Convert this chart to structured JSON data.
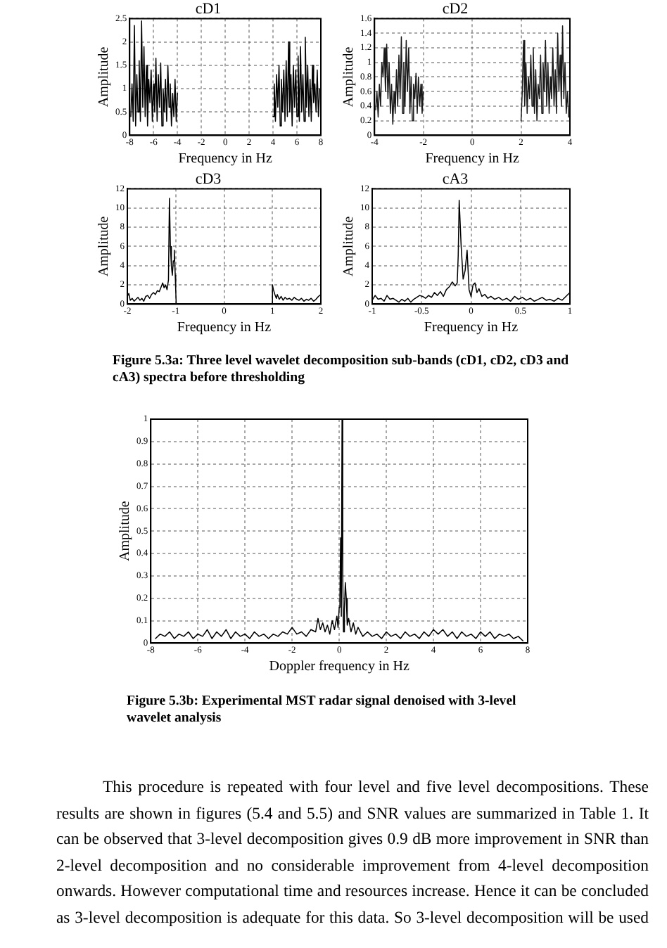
{
  "chart_data": [
    {
      "type": "line",
      "title": "cD1",
      "xlabel": "Frequency in Hz",
      "ylabel": "Amplitude",
      "color": "#000000",
      "marker": "none",
      "grid": true,
      "xlim": [
        -8,
        8
      ],
      "xticks": [
        -8,
        -6,
        -4,
        -2,
        0,
        2,
        4,
        6,
        8
      ],
      "ylim": [
        0,
        2.5
      ],
      "yticks": [
        0,
        0.5,
        1,
        1.5,
        2,
        2.5
      ],
      "x": [
        -7.9,
        -7.8,
        -7.7,
        -7.6,
        -7.5,
        -7.4,
        -7.3,
        -7.2,
        -7.1,
        -7,
        -6.9,
        -6.8,
        -6.7,
        -6.6,
        -6.5,
        -6.4,
        -6.3,
        -6.2,
        -6.1,
        -6,
        -5.9,
        -5.8,
        -5.7,
        -5.6,
        -5.5,
        -5.4,
        -5.3,
        -5.2,
        -5.1,
        -5,
        -4.9,
        -4.8,
        -4.7,
        -4.6,
        -4.5,
        -4.4,
        -4.3,
        -4.2,
        -4.1,
        -4,
        0,
        4,
        4.1,
        4.2,
        4.3,
        4.4,
        4.5,
        4.6,
        4.7,
        4.8,
        4.9,
        5,
        5.1,
        5.2,
        5.3,
        5.4,
        5.5,
        5.6,
        5.7,
        5.8,
        5.9,
        6,
        6.1,
        6.2,
        6.3,
        6.4,
        6.5,
        6.6,
        6.7,
        6.8,
        6.9,
        7,
        7.1,
        7.2,
        7.3,
        7.4,
        7.5,
        7.6,
        7.7,
        7.8,
        7.9
      ],
      "values": [
        0.4,
        1.1,
        0.3,
        2.35,
        0.2,
        1.3,
        0.5,
        1.6,
        0.3,
        2.45,
        0.6,
        1.9,
        0.4,
        1.5,
        0.2,
        1.2,
        0.7,
        1.4,
        0.3,
        1.1,
        0.5,
        1.65,
        0.3,
        1.3,
        0.6,
        1.55,
        0.2,
        1,
        0.5,
        1.2,
        0.3,
        1.5,
        0.6,
        1.1,
        0.2,
        0.9,
        0.4,
        1.2,
        0.3,
        0.9,
        null,
        0.4,
        1.1,
        0.3,
        1.3,
        0.6,
        1.5,
        0.2,
        1.2,
        0.5,
        1.4,
        0.3,
        1.6,
        0.4,
        2,
        0.5,
        1.3,
        0.2,
        1.5,
        0.6,
        1.4,
        0.4,
        1.7,
        0.3,
        1.9,
        0.5,
        1.3,
        0.3,
        2.1,
        0.6,
        1.5,
        0.4,
        1.2,
        0.3,
        1.5,
        0.7,
        1.1,
        0.5,
        1.4,
        0.4,
        1
      ]
    },
    {
      "type": "line",
      "title": "cD2",
      "xlabel": "Frequency in Hz",
      "ylabel": "Amplitude",
      "color": "#1a1a1a",
      "marker": "none",
      "grid": true,
      "xlim": [
        -4,
        4
      ],
      "xticks": [
        -4,
        -2,
        0,
        2,
        4
      ],
      "ylim": [
        0,
        1.6
      ],
      "yticks": [
        0,
        0.2,
        0.4,
        0.6,
        0.8,
        1,
        1.2,
        1.4,
        1.6
      ],
      "x": [
        -3.95,
        -3.9,
        -3.85,
        -3.8,
        -3.75,
        -3.7,
        -3.65,
        -3.6,
        -3.55,
        -3.5,
        -3.45,
        -3.4,
        -3.35,
        -3.3,
        -3.25,
        -3.2,
        -3.15,
        -3.1,
        -3.05,
        -3,
        -2.95,
        -2.9,
        -2.85,
        -2.8,
        -2.75,
        -2.7,
        -2.65,
        -2.6,
        -2.55,
        -2.5,
        -2.45,
        -2.4,
        -2.35,
        -2.3,
        -2.25,
        -2.2,
        -2.15,
        -2.1,
        -2.05,
        -2,
        0,
        2,
        2.05,
        2.1,
        2.15,
        2.2,
        2.25,
        2.3,
        2.35,
        2.4,
        2.45,
        2.5,
        2.55,
        2.6,
        2.65,
        2.7,
        2.75,
        2.8,
        2.85,
        2.9,
        2.95,
        3,
        3.05,
        3.1,
        3.15,
        3.2,
        3.25,
        3.3,
        3.35,
        3.4,
        3.45,
        3.5,
        3.55,
        3.6,
        3.65,
        3.7,
        3.75,
        3.8,
        3.85,
        3.9,
        3.95
      ],
      "values": [
        0.35,
        0.6,
        0.25,
        0.7,
        0.4,
        1,
        0.8,
        1.2,
        0.6,
        1.25,
        0.5,
        1,
        0.3,
        0.7,
        0.15,
        0.6,
        0.3,
        0.9,
        0.4,
        1.1,
        0.5,
        1.35,
        0.3,
        1,
        0.4,
        1.3,
        0.6,
        1.2,
        0.3,
        0.8,
        0.2,
        0.7,
        0.5,
        0.85,
        0.3,
        0.8,
        0.4,
        0.7,
        0.3,
        0.6,
        null,
        0.2,
        0.6,
        1.3,
        0.4,
        1,
        0.3,
        0.8,
        0.5,
        1.1,
        0.4,
        1.2,
        0.3,
        0.9,
        0.2,
        0.7,
        0.5,
        1.1,
        0.3,
        1,
        0.6,
        1.3,
        0.4,
        1,
        0.3,
        0.8,
        0.5,
        1.2,
        0.4,
        0.9,
        0.3,
        1.4,
        0.6,
        1.1,
        0.4,
        1.5,
        0.5,
        1,
        0.3,
        0.6,
        0.25
      ]
    },
    {
      "type": "line",
      "title": "cD3",
      "xlabel": "Frequency in Hz",
      "ylabel": "Amplitude",
      "color": "#000000",
      "marker": "none",
      "grid": true,
      "xlim": [
        -2,
        2
      ],
      "xticks": [
        -2,
        -1,
        0,
        1,
        2
      ],
      "ylim": [
        0,
        12
      ],
      "yticks": [
        0,
        2,
        4,
        6,
        8,
        10,
        12
      ],
      "x": [
        -2,
        -1.97,
        -1.94,
        -1.9,
        -1.86,
        -1.82,
        -1.78,
        -1.74,
        -1.7,
        -1.66,
        -1.62,
        -1.58,
        -1.54,
        -1.5,
        -1.46,
        -1.42,
        -1.38,
        -1.34,
        -1.3,
        -1.27,
        -1.24,
        -1.21,
        -1.18,
        -1.15,
        -1.13,
        -1.11,
        -1.09,
        -1.07,
        -1.05,
        -1.03,
        -1.01,
        -1,
        -0.99,
        0,
        0.99,
        1,
        1.02,
        1.05,
        1.08,
        1.1,
        1.14,
        1.18,
        1.22,
        1.26,
        1.3,
        1.35,
        1.4,
        1.45,
        1.5,
        1.55,
        1.6,
        1.65,
        1.7,
        1.75,
        1.8,
        1.85,
        1.9,
        1.95,
        2
      ],
      "values": [
        0.8,
        1.1,
        0.4,
        0.6,
        0.3,
        0.5,
        0.7,
        0.4,
        0.6,
        0.3,
        0.8,
        0.9,
        0.6,
        1,
        1.2,
        1,
        1.4,
        1.3,
        1.8,
        2.2,
        1.7,
        2,
        1.5,
        2.5,
        11,
        6,
        4,
        3,
        4.5,
        5.6,
        3,
        1.5,
        0,
        null,
        0,
        2,
        1.5,
        1,
        0.6,
        1,
        0.5,
        0.8,
        0.4,
        0.7,
        0.5,
        0.6,
        0.4,
        0.7,
        0.5,
        0.4,
        0.6,
        0.3,
        0.5,
        0.4,
        0.6,
        0.3,
        0.5,
        0.8,
        1
      ]
    },
    {
      "type": "line",
      "title": "cA3",
      "xlabel": "Frequency in Hz",
      "ylabel": "Amplitude",
      "color": "#000000",
      "marker": "none",
      "grid": true,
      "xlim": [
        -1,
        1
      ],
      "xticks": [
        -1,
        -0.5,
        0,
        0.5,
        1
      ],
      "ylim": [
        0,
        12
      ],
      "yticks": [
        0,
        2,
        4,
        6,
        8,
        10,
        12
      ],
      "x": [
        -1,
        -0.97,
        -0.94,
        -0.91,
        -0.88,
        -0.85,
        -0.82,
        -0.79,
        -0.76,
        -0.73,
        -0.7,
        -0.67,
        -0.64,
        -0.61,
        -0.58,
        -0.55,
        -0.52,
        -0.49,
        -0.46,
        -0.43,
        -0.4,
        -0.37,
        -0.34,
        -0.31,
        -0.28,
        -0.25,
        -0.22,
        -0.19,
        -0.16,
        -0.14,
        -0.13,
        -0.12,
        -0.1,
        -0.08,
        -0.06,
        -0.04,
        -0.02,
        0,
        0.02,
        0.04,
        0.06,
        0.08,
        0.11,
        0.14,
        0.17,
        0.2,
        0.24,
        0.28,
        0.32,
        0.36,
        0.4,
        0.44,
        0.48,
        0.52,
        0.56,
        0.6,
        0.64,
        0.68,
        0.72,
        0.76,
        0.8,
        0.84,
        0.88,
        0.92,
        0.96,
        1
      ],
      "values": [
        0.4,
        0.9,
        0.5,
        0.6,
        0.3,
        0.9,
        0.5,
        0.6,
        0.4,
        0.2,
        0.5,
        0.3,
        0.6,
        0.2,
        0.5,
        0.7,
        0.9,
        0.8,
        0.6,
        0.9,
        0.7,
        1.2,
        0.9,
        1.3,
        0.8,
        1.5,
        1.8,
        2.3,
        1.9,
        2.2,
        5,
        10.8,
        6,
        2.6,
        3.5,
        5.6,
        1.5,
        0.8,
        2,
        2.2,
        1.2,
        1.6,
        0.8,
        1,
        0.6,
        0.8,
        0.5,
        0.7,
        0.4,
        0.6,
        0.3,
        0.8,
        0.5,
        0.7,
        0.4,
        0.6,
        0.3,
        0.5,
        0.7,
        0.4,
        0.5,
        0.3,
        0.6,
        0.4,
        0.8,
        1.2
      ],
      "annotations": [
        "Figure 5.3a: Three level wavelet decomposition sub-bands (cD1, cD2, cD3 and cA3) spectra before thresholding"
      ]
    },
    {
      "type": "line",
      "xlabel": "Doppler frequency in Hz",
      "ylabel": "Amplitude",
      "color": "#000000",
      "marker": "none",
      "grid": true,
      "xlim": [
        -8,
        8
      ],
      "xticks": [
        -8,
        -6,
        -4,
        -2,
        0,
        2,
        4,
        6,
        8
      ],
      "ylim": [
        0,
        1
      ],
      "yticks": [
        0,
        0.1,
        0.2,
        0.3,
        0.4,
        0.5,
        0.6,
        0.7,
        0.8,
        0.9,
        1
      ],
      "x": [
        -7.8,
        -7.6,
        -7.4,
        -7.2,
        -7,
        -6.8,
        -6.6,
        -6.4,
        -6.2,
        -6,
        -5.8,
        -5.6,
        -5.4,
        -5.2,
        -5,
        -4.8,
        -4.6,
        -4.4,
        -4.2,
        -4,
        -3.8,
        -3.6,
        -3.4,
        -3.2,
        -3,
        -2.8,
        -2.6,
        -2.4,
        -2.2,
        -2,
        -1.8,
        -1.6,
        -1.4,
        -1.2,
        -1,
        -0.9,
        -0.8,
        -0.7,
        -0.6,
        -0.5,
        -0.4,
        -0.3,
        -0.2,
        -0.1,
        -0.05,
        0,
        0.03,
        0.06,
        0.09,
        0.12,
        0.15,
        0.18,
        0.22,
        0.26,
        0.3,
        0.34,
        0.4,
        0.5,
        0.6,
        0.7,
        0.8,
        1,
        1.2,
        1.4,
        1.6,
        1.8,
        2,
        2.2,
        2.4,
        2.6,
        2.8,
        3,
        3.2,
        3.4,
        3.6,
        3.8,
        4,
        4.2,
        4.4,
        4.6,
        4.8,
        5,
        5.2,
        5.4,
        5.6,
        5.8,
        6,
        6.2,
        6.4,
        6.6,
        6.8,
        7,
        7.2,
        7.4,
        7.6,
        7.8
      ],
      "values": [
        0.02,
        0.04,
        0.03,
        0.05,
        0.02,
        0.04,
        0.03,
        0.05,
        0.02,
        0.04,
        0.03,
        0.06,
        0.02,
        0.05,
        0.03,
        0.06,
        0.02,
        0.05,
        0.03,
        0.04,
        0.02,
        0.05,
        0.03,
        0.04,
        0.02,
        0.04,
        0.03,
        0.05,
        0.04,
        0.07,
        0.04,
        0.05,
        0.03,
        0.06,
        0.05,
        0.11,
        0.06,
        0.09,
        0.05,
        0.08,
        0.04,
        0.1,
        0.06,
        0.12,
        0.07,
        0.16,
        0.2,
        0.47,
        0.12,
        1,
        0.3,
        0.05,
        0.15,
        0.27,
        0.2,
        0.08,
        0.11,
        0.05,
        0.09,
        0.04,
        0.07,
        0.03,
        0.05,
        0.03,
        0.04,
        0.02,
        0.05,
        0.03,
        0.04,
        0.02,
        0.05,
        0.03,
        0.04,
        0.02,
        0.05,
        0.03,
        0.06,
        0.04,
        0.06,
        0.03,
        0.05,
        0.02,
        0.05,
        0.03,
        0.04,
        0.02,
        0.05,
        0.03,
        0.05,
        0.02,
        0.04,
        0.03,
        0.04,
        0.02,
        0.03,
        0.01
      ],
      "annotations": [
        "Figure 5.3b: Experimental MST radar signal denoised with 3-level wavelet analysis",
        "This procedure is repeated with four level and five level decompositions. These results are shown in figures (5.4 and 5.5) and SNR values are summarized in Table 1. It can be observed that 3-level decomposition gives 0.9 dB more improvement in SNR than 2-level decomposition and no considerable improvement from 4-level decomposition onwards. However computational time and resources increase. Hence it can be concluded as 3-level decomposition is adequate for this data. So 3-level decomposition will be used"
      ]
    }
  ]
}
